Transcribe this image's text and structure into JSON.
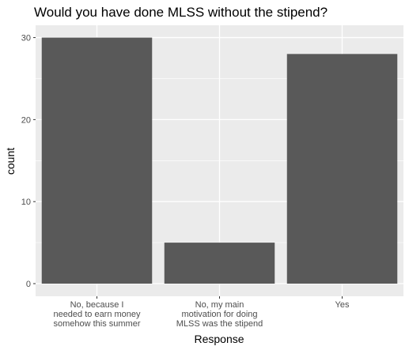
{
  "chart_data": {
    "type": "bar",
    "title": "Would you have done MLSS without the stipend?",
    "xlabel": "Response",
    "ylabel": "count",
    "categories": [
      [
        "No, because I",
        "needed to earn money",
        "somehow this summer"
      ],
      [
        "No, my main",
        "motivation for doing",
        "MLSS was the stipend"
      ],
      [
        "Yes"
      ]
    ],
    "values": [
      30,
      5,
      28
    ],
    "ylim": [
      0,
      31.5
    ],
    "yticks": [
      0,
      10,
      20,
      30
    ],
    "grid": true,
    "colors": {
      "panel_background": "#ebebeb",
      "grid_major": "#ffffff",
      "bar_fill": "#595959",
      "tick_text": "#4d4d4d",
      "tick_mark": "#333333"
    }
  }
}
